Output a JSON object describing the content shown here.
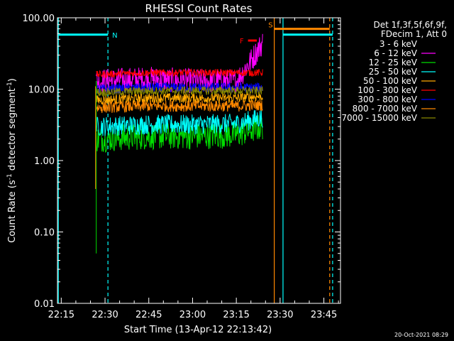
{
  "chart_data": {
    "type": "line",
    "title": "RHESSI Count Rates",
    "xlabel": "Start Time (13-Apr-12 22:13:42)",
    "ylabel_main": "Count Rate (s",
    "ylabel_sup1": "-1",
    "ylabel_mid": " detector segment",
    "ylabel_sup2": "-1",
    "ylabel_end": ")",
    "x_ticks": [
      "22:15",
      "22:30",
      "22:45",
      "23:00",
      "23:15",
      "23:30",
      "23:45"
    ],
    "y_ticks": [
      "100.00",
      "10.00",
      "1.00",
      "0.10",
      "0.01"
    ],
    "y_scale": "log",
    "ylim": [
      0.01,
      100
    ],
    "xlim_minutes_after_22_13_42": [
      0,
      97
    ],
    "legend": {
      "header_line1": "Det 1f,3f,5f,6f,9f,",
      "header_line2": "FDecim 1, Att 0",
      "placement": "top-right"
    },
    "series": [
      {
        "name": "3 - 6 keV",
        "color": "#000000",
        "times": [
          "22:27",
          "22:33",
          "22:45",
          "23:00",
          "23:15",
          "23:22",
          "23:24"
        ],
        "values": [
          1.5,
          3.5,
          5.5,
          5,
          4,
          30,
          50
        ]
      },
      {
        "name": "6 - 12 keV",
        "color": "#ff00ff",
        "times": [
          "22:27",
          "22:45",
          "23:00",
          "23:15",
          "23:20",
          "23:24"
        ],
        "values": [
          13,
          14,
          13,
          13,
          25,
          45
        ]
      },
      {
        "name": "12 - 25 keV",
        "color": "#00dd00",
        "times": [
          "22:27",
          "22:45",
          "23:00",
          "23:15",
          "23:24"
        ],
        "values": [
          2,
          2.2,
          2.2,
          2.3,
          3
        ]
      },
      {
        "name": "25 - 50 keV",
        "color": "#00ffff",
        "times": [
          "22:27",
          "22:45",
          "23:00",
          "23:15",
          "23:24"
        ],
        "values": [
          3,
          3.2,
          3.2,
          3.3,
          4
        ]
      },
      {
        "name": "50 - 100 keV",
        "color": "#ffaa00",
        "times": [
          "22:27",
          "22:45",
          "23:00",
          "23:15",
          "23:24"
        ],
        "values": [
          7,
          7.5,
          7.5,
          7.5,
          8
        ]
      },
      {
        "name": "100 - 300 keV",
        "color": "#ff0000",
        "times": [
          "22:27",
          "22:45",
          "23:00",
          "23:15",
          "23:24"
        ],
        "values": [
          16,
          17,
          17,
          17,
          17
        ]
      },
      {
        "name": "300 - 800 keV",
        "color": "#0000ff",
        "times": [
          "22:27",
          "22:45",
          "23:00",
          "23:15",
          "23:24"
        ],
        "values": [
          10,
          10.5,
          10.5,
          10.5,
          10.5
        ]
      },
      {
        "name": "800 - 7000 keV",
        "color": "#ff8800",
        "times": [
          "22:27",
          "22:45",
          "23:00",
          "23:15",
          "23:24"
        ],
        "values": [
          5.5,
          5.8,
          5.8,
          5.8,
          6
        ]
      },
      {
        "name": "7000 - 15000 keV",
        "color": "#888800",
        "times": [
          "22:27",
          "22:45",
          "23:00",
          "23:15",
          "23:24"
        ],
        "values": [
          9,
          9.5,
          9.5,
          9.5,
          9.5
        ]
      }
    ],
    "flag_bars": [
      {
        "label": "N",
        "color": "#00ffff",
        "segments": [
          [
            "22:13:42",
            "22:31"
          ],
          [
            "23:31",
            "23:48"
          ]
        ]
      },
      {
        "label": "S",
        "color": "#ff8800",
        "segments": [
          [
            "23:28",
            "23:47"
          ]
        ]
      },
      {
        "label": "F",
        "color": "#ff0000",
        "segments": [
          [
            "23:19",
            "23:22"
          ]
        ]
      }
    ],
    "flag_lines": [
      {
        "time": "22:14",
        "color": "#00ffff",
        "dashed": false
      },
      {
        "time": "22:31",
        "color": "#00ffff",
        "dashed": true
      },
      {
        "time": "23:28",
        "color": "#ff8800",
        "dashed": false
      },
      {
        "time": "23:31",
        "color": "#00ffff",
        "dashed": false
      },
      {
        "time": "23:47",
        "color": "#ff8800",
        "dashed": true
      },
      {
        "time": "23:48",
        "color": "#00ffff",
        "dashed": true
      }
    ],
    "grid": false
  },
  "footer": {
    "timestamp": "20-Oct-2021 08:29"
  }
}
